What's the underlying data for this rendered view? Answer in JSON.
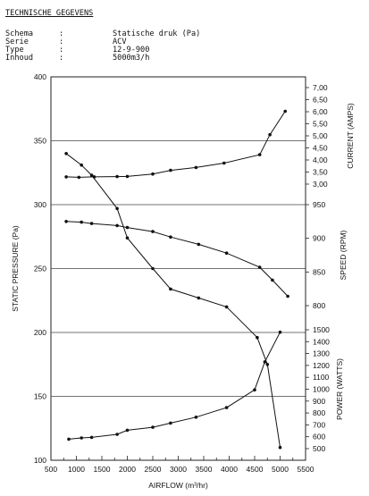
{
  "header": {
    "title": "TECHNISCHE GEGEVENS",
    "specs": [
      {
        "key": "Schema",
        "sep": ":",
        "value": "Statische druk (Pa)"
      },
      {
        "key": "Serie",
        "sep": ":",
        "value": "ACV"
      },
      {
        "key": "Type",
        "sep": ":",
        "value": "12-9-900"
      },
      {
        "key": "Inhoud",
        "sep": ":",
        "value": "5000m3/h"
      }
    ]
  },
  "chart_data": {
    "type": "line",
    "xlabel": "AIRFLOW (m³/hr)",
    "xlim": [
      500,
      5500
    ],
    "x_ticks": [
      500,
      1000,
      1500,
      2000,
      2500,
      3000,
      3500,
      4000,
      4500,
      5000,
      5500
    ],
    "x_tick_labels": [
      "500",
      "1000",
      "1500",
      "2000",
      "2500",
      "3000",
      "3500",
      "4000",
      "4500",
      "5000",
      "5500"
    ],
    "ylabel": "STATIC PRESSURE (Pa)",
    "ylim": [
      100,
      400
    ],
    "y_ticks": [
      100,
      150,
      200,
      250,
      300,
      350,
      400
    ],
    "grid": true,
    "series": [
      {
        "name": "STATIC PRESSURE (Pa)",
        "axis": "pressure",
        "x": [
          800,
          1100,
          1300,
          1800,
          2000,
          2500,
          2850,
          3400,
          3950,
          4550,
          4750,
          5000
        ],
        "y": [
          340,
          331,
          323,
          297,
          274,
          250,
          234,
          227,
          220,
          196,
          175,
          110
        ]
      },
      {
        "name": "CURRENT (AMPS)",
        "axis": "current",
        "x": [
          800,
          1050,
          1350,
          1800,
          2000,
          2500,
          2850,
          3350,
          3900,
          4600,
          4800,
          5100
        ],
        "y": [
          3.3,
          3.28,
          3.3,
          3.31,
          3.32,
          3.42,
          3.57,
          3.69,
          3.87,
          4.22,
          5.05,
          6.02
        ]
      },
      {
        "name": "SPEED (RPM)",
        "axis": "speed",
        "x": [
          800,
          1100,
          1300,
          1800,
          2000,
          2500,
          2850,
          3400,
          3950,
          4600,
          4850,
          5150
        ],
        "y": [
          925,
          924,
          922,
          919,
          916,
          910,
          902,
          891,
          878,
          857,
          838,
          814
        ]
      },
      {
        "name": "POWER (WATTS)",
        "axis": "power",
        "x": [
          850,
          1100,
          1300,
          1800,
          2000,
          2500,
          2850,
          3350,
          3950,
          4500,
          4700,
          5000
        ],
        "y": [
          580,
          590,
          595,
          620,
          655,
          680,
          715,
          765,
          845,
          995,
          1230,
          1480
        ]
      }
    ],
    "right_axes": [
      {
        "id": "current",
        "label": "CURRENT (AMPS)",
        "range": [
          3.0,
          7.0
        ],
        "ticks": [
          3.0,
          3.5,
          4.0,
          4.5,
          5.0,
          5.5,
          6.0,
          6.5,
          7.0
        ],
        "tick_labels": [
          "3,00",
          "3,50",
          "4,00",
          "4,50",
          "5,00",
          "5,50",
          "6,00",
          "6,50",
          "7,00"
        ]
      },
      {
        "id": "speed",
        "label": "SPEED (RPM)",
        "range": [
          800,
          950
        ],
        "ticks": [
          800,
          850,
          900,
          950
        ],
        "tick_labels": [
          "800",
          "850",
          "900",
          "950"
        ]
      },
      {
        "id": "power",
        "label": "POWER (WATTS)",
        "range": [
          500,
          1500
        ],
        "ticks": [
          500,
          600,
          700,
          800,
          900,
          1000,
          1100,
          1200,
          1300,
          1400,
          1500
        ],
        "tick_labels": [
          "500",
          "600",
          "700",
          "800",
          "900",
          "1000",
          "1100",
          "1200",
          "1300",
          "1400",
          "1500"
        ]
      }
    ]
  }
}
